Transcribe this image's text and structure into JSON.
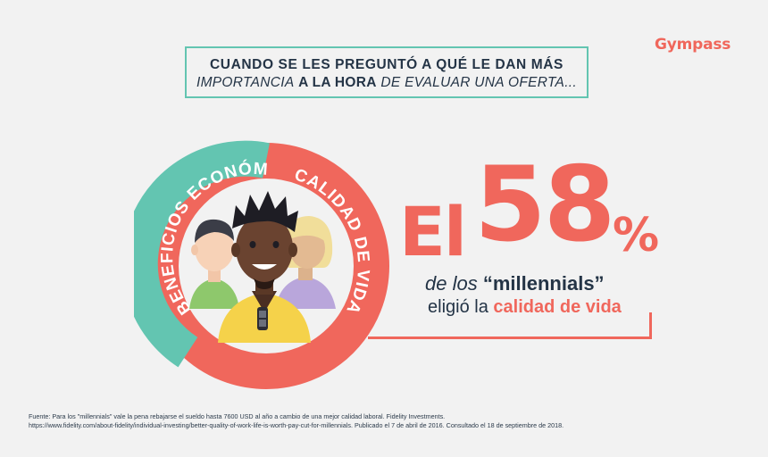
{
  "brand": {
    "name": "Gympass",
    "color": "#f0675c"
  },
  "headline": {
    "line1": "CUANDO SE LES PREGUNTÓ A QUÉ LE DAN MÁS",
    "line2_part1": "IMPORTANCIA",
    "line2_part2": "A LA HORA",
    "line2_part3": "DE EVALUAR UNA OFERTA...",
    "border_color": "#63c5b1"
  },
  "ring": {
    "left_label": "BENEFICIOS ECONÓMICOS",
    "right_label": "CALIDAD DE VIDA",
    "left_color": "#63c5b1",
    "right_color": "#f0675c"
  },
  "stat": {
    "prefix": "El",
    "number": "58",
    "percent": "%",
    "line1_part1": "de los",
    "line1_part2": "“millennials”",
    "line2_part1": "eligió la",
    "line2_part2": "calidad de vida"
  },
  "footnote": {
    "line1": "Fuente: Para los \"millennials\" vale la pena rebajarse el sueldo hasta 7600 USD al año a cambio de una mejor calidad laboral. Fidelity Investments.",
    "line2": "https://www.fidelity.com/about-fidelity/individual-investing/better-quality-of-work-life-is-worth-pay-cut-for-millennials. Publicado el 7 de abril de 2016. Consultado el 18 de septiembre de 2018."
  }
}
